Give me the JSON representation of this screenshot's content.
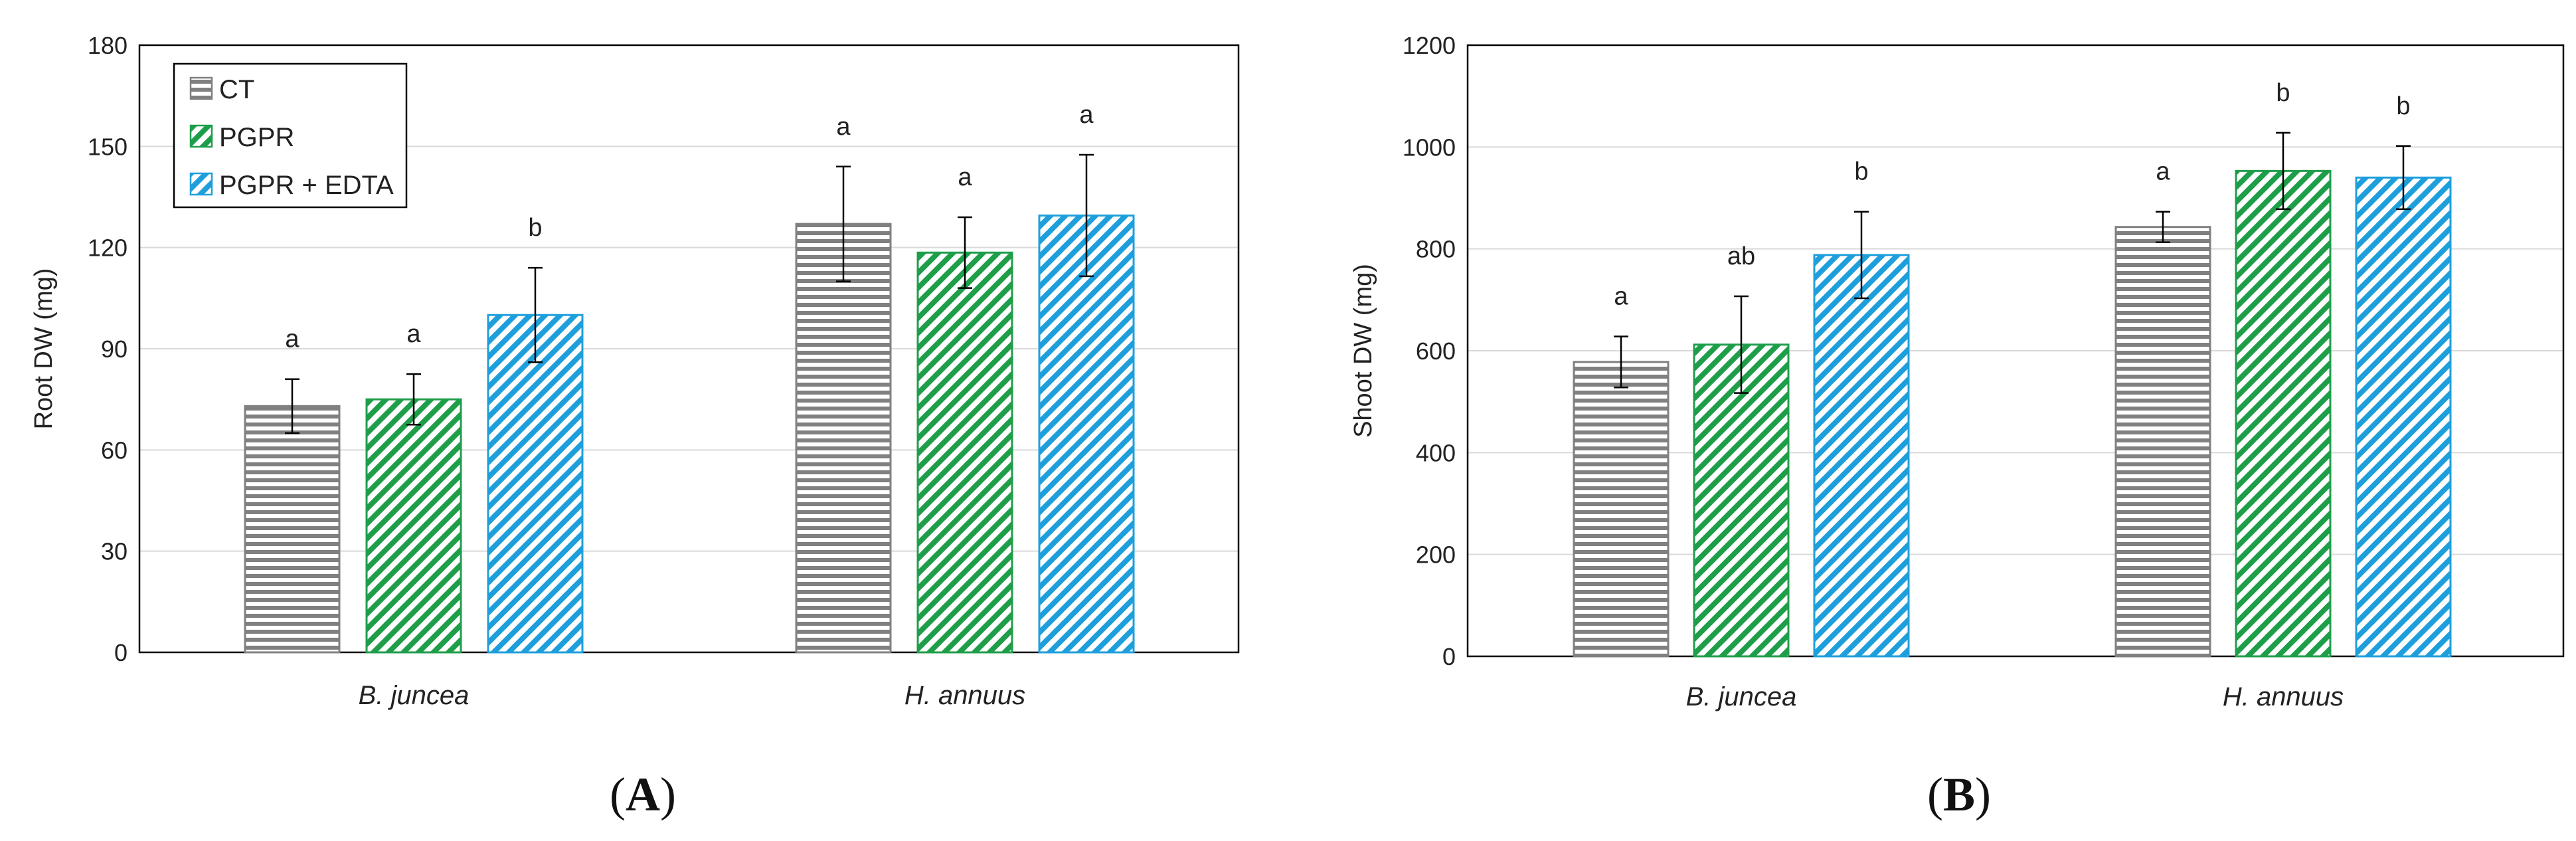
{
  "colors": {
    "ct": "#808080",
    "pgpr": "#1f9e4a",
    "edta": "#1e9fdc"
  },
  "legend": {
    "items": [
      {
        "label": "CT",
        "pattern": "horizontal-stripes"
      },
      {
        "label": "PGPR",
        "pattern": "diagonal-stripes"
      },
      {
        "label": "PGPR + EDTA",
        "pattern": "diagonal-stripes"
      }
    ]
  },
  "chart_data": [
    {
      "type": "bar",
      "panel_label": "A",
      "categories": [
        "B. juncea",
        "H. annuus"
      ],
      "ylabel": "Root DW (mg)",
      "ylim": [
        0,
        180
      ],
      "yticks": [
        0,
        30,
        60,
        90,
        120,
        150,
        180
      ],
      "grid": true,
      "legend_position": "top-left",
      "series": [
        {
          "name": "CT",
          "values": [
            73,
            127
          ],
          "errors": [
            8,
            17
          ],
          "letters": [
            "a",
            "a"
          ]
        },
        {
          "name": "PGPR",
          "values": [
            75,
            118.5
          ],
          "errors": [
            7.5,
            10.5
          ],
          "letters": [
            "a",
            "a"
          ]
        },
        {
          "name": "PGPR + EDTA",
          "values": [
            100,
            129.5
          ],
          "errors": [
            14,
            18
          ],
          "letters": [
            "b",
            "a"
          ]
        }
      ]
    },
    {
      "type": "bar",
      "panel_label": "B",
      "categories": [
        "B. juncea",
        "H. annuus"
      ],
      "ylabel": "Shoot DW (mg)",
      "ylim": [
        0,
        1200
      ],
      "yticks": [
        0,
        200,
        400,
        600,
        800,
        1000,
        1200
      ],
      "grid": true,
      "series": [
        {
          "name": "CT",
          "values": [
            578,
            843
          ],
          "errors": [
            50,
            30
          ],
          "letters": [
            "a",
            "a"
          ]
        },
        {
          "name": "PGPR",
          "values": [
            612,
            953
          ],
          "errors": [
            95,
            75
          ],
          "letters": [
            "ab",
            "b"
          ]
        },
        {
          "name": "PGPR + EDTA",
          "values": [
            788,
            940
          ],
          "errors": [
            85,
            62
          ],
          "letters": [
            "b",
            "b"
          ]
        }
      ]
    }
  ]
}
